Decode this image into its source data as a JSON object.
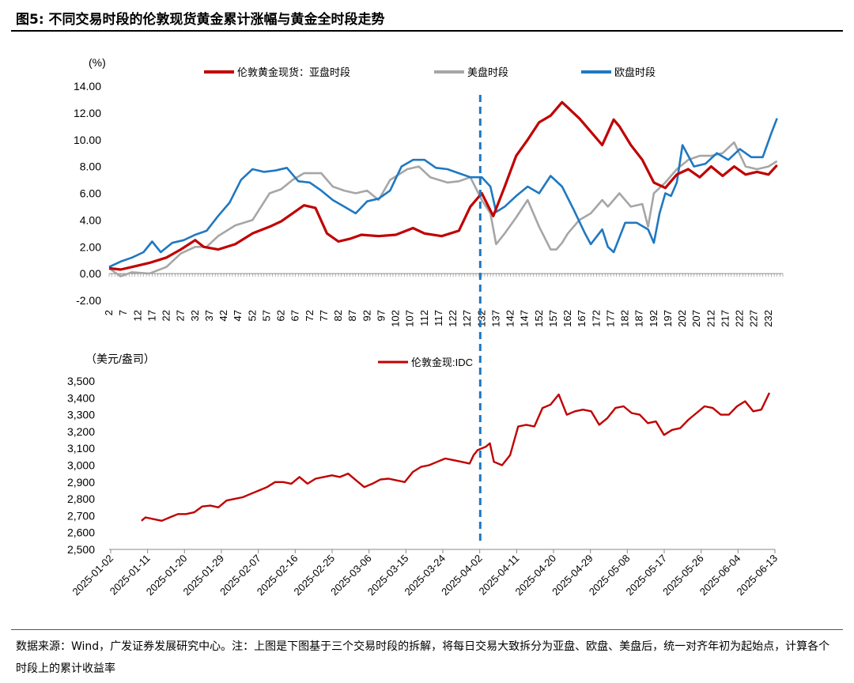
{
  "figure_title": "图5:  不同交易时段的伦敦现货黄金累计涨幅与黄金全时段走势",
  "source_note": "数据来源：Wind，广发证券发展研究中心。注：上图是下图基于三个交易时段的拆解，将每日交易大致拆分为亚盘、欧盘、美盘后，统一对齐年初为起始点，计算各个时段上的累计收益率",
  "colors": {
    "asia": "#C00000",
    "us": "#A6A6A6",
    "europe": "#1F78C1",
    "spot": "#C00000",
    "divider": "#1F78C1"
  },
  "chart_data": [
    {
      "type": "line",
      "title": "",
      "ylabel": "(%)",
      "xlabel": "",
      "ylim": [
        -2,
        14
      ],
      "xlim": [
        2,
        237
      ],
      "yticks": [
        "14.00",
        "12.00",
        "10.00",
        "8.00",
        "6.00",
        "4.00",
        "2.00",
        "0.00",
        "-2.00"
      ],
      "ytick_values": [
        14,
        12,
        10,
        8,
        6,
        4,
        2,
        0,
        -2
      ],
      "xticks": [
        "2",
        "7",
        "12",
        "17",
        "22",
        "27",
        "32",
        "37",
        "42",
        "47",
        "52",
        "57",
        "62",
        "67",
        "72",
        "77",
        "82",
        "87",
        "92",
        "97",
        "102",
        "107",
        "112",
        "117",
        "122",
        "127",
        "132",
        "137",
        "142",
        "147",
        "152",
        "157",
        "162",
        "167",
        "172",
        "177",
        "182",
        "187",
        "192",
        "197",
        "202",
        "207",
        "212",
        "217",
        "222",
        "227",
        "232"
      ],
      "xtick_values": [
        2,
        7,
        12,
        17,
        22,
        27,
        32,
        37,
        42,
        47,
        52,
        57,
        62,
        67,
        72,
        77,
        82,
        87,
        92,
        97,
        102,
        107,
        112,
        117,
        122,
        127,
        132,
        137,
        142,
        147,
        152,
        157,
        162,
        167,
        172,
        177,
        182,
        187,
        192,
        197,
        202,
        207,
        212,
        217,
        222,
        227,
        232
      ],
      "legend_position": "top",
      "divider_x": 132,
      "series": [
        {
          "name": "伦敦黄金现货：亚盘时段",
          "color": "#C00000",
          "x": [
            2,
            6,
            10,
            16,
            22,
            27,
            32,
            35,
            40,
            46,
            52,
            58,
            62,
            66,
            70,
            74,
            78,
            82,
            86,
            90,
            96,
            102,
            108,
            112,
            118,
            124,
            128,
            132,
            136,
            140,
            144,
            148,
            152,
            156,
            160,
            162,
            164,
            166,
            170,
            174,
            178,
            180,
            184,
            188,
            192,
            196,
            200,
            204,
            208,
            212,
            216,
            220,
            224,
            228,
            232,
            235
          ],
          "y": [
            0.4,
            0.3,
            0.5,
            0.8,
            1.2,
            1.8,
            2.5,
            2.0,
            1.8,
            2.2,
            3.0,
            3.5,
            3.9,
            4.5,
            5.1,
            4.9,
            3.0,
            2.4,
            2.6,
            2.9,
            2.8,
            2.9,
            3.4,
            3.0,
            2.8,
            3.2,
            5.0,
            6.0,
            4.3,
            6.5,
            8.8,
            10.0,
            11.3,
            11.8,
            12.8,
            12.4,
            12.0,
            11.6,
            10.6,
            9.6,
            11.5,
            11.0,
            9.6,
            8.5,
            6.8,
            6.4,
            7.4,
            7.8,
            7.2,
            8.0,
            7.3,
            8.0,
            7.4,
            7.6,
            7.4,
            8.1
          ]
        },
        {
          "name": "美盘时段",
          "color": "#A6A6A6",
          "x": [
            2,
            6,
            10,
            16,
            22,
            27,
            32,
            36,
            40,
            46,
            52,
            58,
            62,
            66,
            70,
            76,
            80,
            84,
            88,
            92,
            96,
            100,
            106,
            110,
            114,
            120,
            124,
            128,
            132,
            135,
            137,
            140,
            144,
            148,
            152,
            156,
            158,
            160,
            162,
            166,
            170,
            174,
            176,
            180,
            184,
            188,
            190,
            192,
            196,
            200,
            204,
            208,
            212,
            216,
            220,
            224,
            228,
            232,
            235
          ],
          "y": [
            0.4,
            -0.2,
            0.1,
            0.0,
            0.5,
            1.5,
            2.0,
            2.0,
            2.8,
            3.6,
            4.0,
            6.0,
            6.3,
            7.0,
            7.5,
            7.5,
            6.5,
            6.2,
            6.0,
            6.2,
            5.5,
            7.0,
            7.8,
            8.0,
            7.2,
            6.8,
            6.9,
            7.2,
            5.5,
            4.5,
            2.2,
            3.0,
            4.2,
            5.5,
            3.5,
            1.8,
            1.8,
            2.3,
            3.0,
            4.0,
            4.5,
            5.5,
            5.0,
            6.0,
            5.0,
            5.2,
            3.5,
            6.0,
            6.8,
            7.8,
            8.5,
            8.8,
            8.8,
            9.0,
            9.8,
            8.0,
            7.8,
            8.0,
            8.4
          ]
        },
        {
          "name": "欧盘时段",
          "color": "#1F78C1",
          "x": [
            2,
            6,
            10,
            14,
            17,
            20,
            24,
            28,
            32,
            36,
            40,
            44,
            48,
            52,
            56,
            60,
            64,
            68,
            72,
            76,
            80,
            84,
            88,
            92,
            96,
            100,
            104,
            108,
            112,
            116,
            120,
            124,
            128,
            132,
            135,
            137,
            140,
            144,
            148,
            152,
            156,
            160,
            164,
            168,
            170,
            174,
            176,
            178,
            182,
            186,
            190,
            192,
            194,
            196,
            198,
            200,
            202,
            206,
            210,
            214,
            218,
            222,
            226,
            230,
            233,
            235
          ],
          "y": [
            0.5,
            0.9,
            1.2,
            1.6,
            2.4,
            1.6,
            2.3,
            2.5,
            2.9,
            3.2,
            4.3,
            5.3,
            7.0,
            7.8,
            7.6,
            7.7,
            7.9,
            6.9,
            6.8,
            6.2,
            5.5,
            5.0,
            4.5,
            5.4,
            5.6,
            6.2,
            8.0,
            8.5,
            8.5,
            7.9,
            7.8,
            7.5,
            7.2,
            7.2,
            6.5,
            4.6,
            5.0,
            5.8,
            6.5,
            6.0,
            7.3,
            6.5,
            4.8,
            3.0,
            2.2,
            3.3,
            2.0,
            1.6,
            3.8,
            3.8,
            3.3,
            2.3,
            4.5,
            6.0,
            5.8,
            6.8,
            9.6,
            8.0,
            8.2,
            9.0,
            8.5,
            9.3,
            8.7,
            8.7,
            10.5,
            11.6
          ]
        }
      ]
    },
    {
      "type": "line",
      "title": "",
      "ylabel": "（美元/盎司）",
      "xlabel": "",
      "ylim": [
        2500,
        3500
      ],
      "yticks": [
        "3,500",
        "3,400",
        "3,300",
        "3,200",
        "3,100",
        "3,000",
        "2,900",
        "2,800",
        "2,700",
        "2,600",
        "2,500"
      ],
      "ytick_values": [
        3500,
        3400,
        3300,
        3200,
        3100,
        3000,
        2900,
        2800,
        2700,
        2600,
        2500
      ],
      "xticks": [
        "2025-01-02",
        "2025-01-11",
        "2025-01-20",
        "2025-01-29",
        "2025-02-07",
        "2025-02-16",
        "2025-02-25",
        "2025-03-06",
        "2025-03-15",
        "2025-03-24",
        "2025-04-02",
        "2025-04-11",
        "2025-04-20",
        "2025-04-29",
        "2025-05-08",
        "2025-05-17",
        "2025-05-26",
        "2025-06-04",
        "2025-06-13"
      ],
      "xlim_days": [
        0,
        162
      ],
      "legend_position": "top-center",
      "divider_day": 93,
      "series": [
        {
          "name": "伦敦金现:IDC",
          "color": "#C00000",
          "day": [
            7,
            8,
            10,
            12,
            14,
            16,
            18,
            20,
            22,
            24,
            26,
            28,
            30,
            32,
            34,
            36,
            38,
            40,
            42,
            44,
            46,
            48,
            50,
            52,
            54,
            56,
            58,
            60,
            62,
            64,
            66,
            68,
            70,
            72,
            74,
            76,
            78,
            80,
            82,
            84,
            86,
            88,
            89,
            90,
            91,
            92,
            93,
            94,
            96,
            98,
            100,
            102,
            104,
            106,
            108,
            110,
            112,
            114,
            116,
            118,
            120,
            122,
            124,
            126,
            128,
            130,
            132,
            134,
            136,
            138,
            140,
            142,
            144,
            146,
            148,
            150,
            152,
            154,
            156,
            158,
            160,
            162
          ],
          "value": [
            2670,
            2690,
            2680,
            2670,
            2690,
            2710,
            2710,
            2720,
            2755,
            2760,
            2750,
            2790,
            2800,
            2810,
            2830,
            2850,
            2870,
            2900,
            2900,
            2890,
            2930,
            2890,
            2920,
            2930,
            2940,
            2930,
            2950,
            2910,
            2870,
            2890,
            2915,
            2920,
            2910,
            2900,
            2960,
            2990,
            3000,
            3020,
            3040,
            3030,
            3020,
            3010,
            3060,
            3090,
            3100,
            3110,
            3130,
            3020,
            3000,
            3060,
            3230,
            3240,
            3230,
            3340,
            3360,
            3420,
            3300,
            3320,
            3330,
            3320,
            3240,
            3280,
            3340,
            3350,
            3310,
            3300,
            3250,
            3260,
            3180,
            3210,
            3220,
            3270,
            3310,
            3350,
            3340,
            3300,
            3300,
            3350,
            3380,
            3320,
            3330,
            3430
          ]
        }
      ]
    }
  ]
}
